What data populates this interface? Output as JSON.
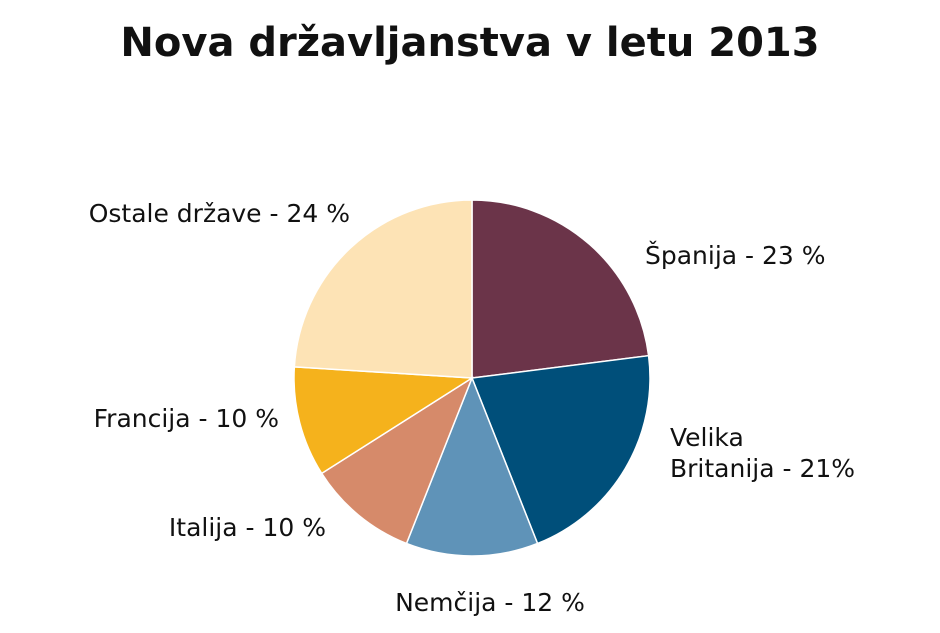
{
  "chart_data": {
    "type": "pie",
    "title": "Nova državljanstva v letu 2013",
    "values": [
      23,
      21,
      12,
      10,
      10,
      24
    ],
    "value_labels": [
      "Španija - 23 %",
      "Velika\nBritanija - 21%",
      "Nemčija - 12 %",
      "Italija - 10 %",
      "Francija - 10 %",
      "Ostale države - 24 %"
    ],
    "colors": [
      "#6b3449",
      "#004f7a",
      "#5f93b8",
      "#d68a6a",
      "#f5b21c",
      "#fde3b5"
    ]
  }
}
